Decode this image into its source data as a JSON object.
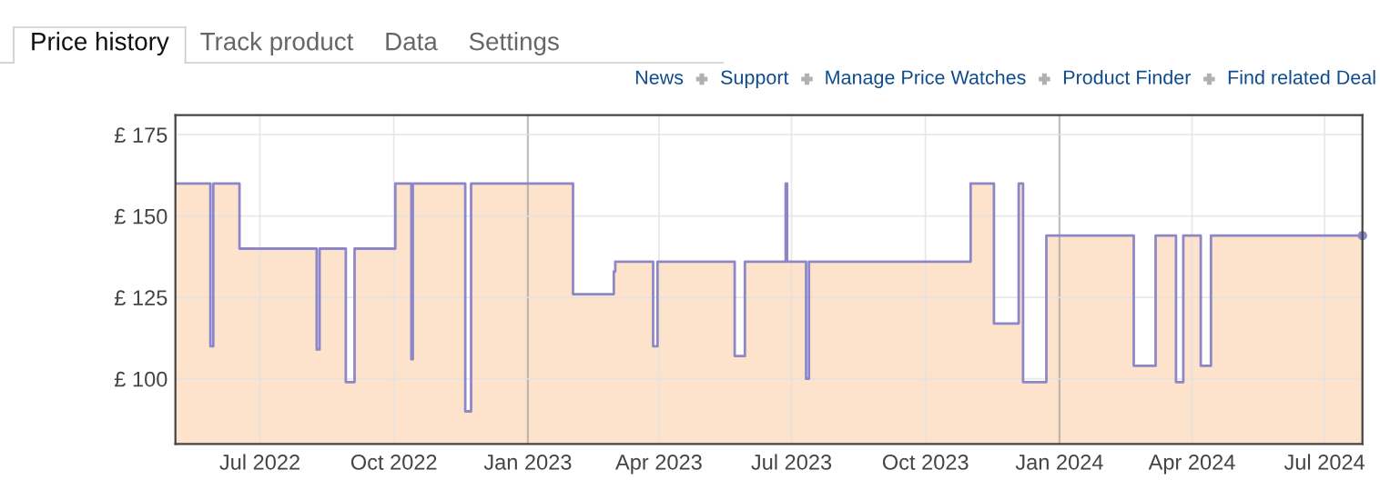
{
  "chart_data": {
    "type": "step",
    "annotations": [
      "Price history",
      "Track product",
      "Data",
      "Settings",
      "News",
      "Support",
      "Manage Price Watches",
      "Product Finder",
      "Find related Deal"
    ],
    "xlim": [
      "2022-05-04",
      "2024-07-27"
    ],
    "ylim": [
      80,
      181
    ],
    "xticks": [
      {
        "value": "2022-07-01",
        "label": "Jul 2022"
      },
      {
        "value": "2022-10-01",
        "label": "Oct 2022"
      },
      {
        "value": "2023-01-01",
        "label": "Jan 2023"
      },
      {
        "value": "2023-04-01",
        "label": "Apr 2023"
      },
      {
        "value": "2023-07-01",
        "label": "Jul 2023"
      },
      {
        "value": "2023-10-01",
        "label": "Oct 2023"
      },
      {
        "value": "2024-01-01",
        "label": "Jan 2024"
      },
      {
        "value": "2024-04-01",
        "label": "Apr 2024"
      },
      {
        "value": "2024-07-01",
        "label": "Jul 2024"
      }
    ],
    "yticks": [
      {
        "value": 100,
        "label": "£ 100"
      },
      {
        "value": 125,
        "label": "£ 125"
      },
      {
        "value": 150,
        "label": "£ 150"
      },
      {
        "value": 175,
        "label": "£ 175"
      }
    ],
    "grid": true,
    "series": [
      {
        "type": "area",
        "color": "#fde3cb",
        "x": [
          "2022-05-04",
          "2022-05-28",
          "2022-05-30",
          "2022-06-17",
          "2022-08-09",
          "2022-08-11",
          "2022-08-29",
          "2022-09-04",
          "2022-10-02",
          "2022-10-13",
          "2022-10-14",
          "2022-11-19",
          "2022-11-23",
          "2023-02-01",
          "2023-03-01",
          "2023-03-02",
          "2023-03-28",
          "2023-03-31",
          "2023-05-23",
          "2023-05-30",
          "2023-06-27",
          "2023-06-28",
          "2023-07-11",
          "2023-07-13",
          "2023-11-01",
          "2023-11-17",
          "2023-12-04",
          "2023-12-07",
          "2023-12-23",
          "2024-02-21",
          "2024-03-07",
          "2024-03-21",
          "2024-03-26",
          "2024-04-07",
          "2024-04-14",
          "2024-07-27"
        ],
        "values": [
          160,
          110,
          160,
          140,
          109,
          140,
          99,
          140,
          160,
          106,
          160,
          90,
          160,
          126,
          133,
          136,
          110,
          136,
          107,
          136,
          160,
          136,
          100,
          136,
          160,
          117,
          160,
          99,
          144,
          104,
          144,
          99,
          144,
          104,
          144,
          144
        ]
      },
      {
        "type": "step",
        "color": "#8d87c9",
        "x": [
          "2022-05-04",
          "2022-05-28",
          "2022-05-30",
          "2022-06-17",
          "2022-08-09",
          "2022-08-11",
          "2022-08-29",
          "2022-09-04",
          "2022-10-02",
          "2022-10-13",
          "2022-10-14",
          "2022-11-19",
          "2022-11-23",
          "2023-02-01",
          "2023-03-01",
          "2023-03-02",
          "2023-03-28",
          "2023-03-31",
          "2023-05-23",
          "2023-05-30",
          "2023-06-27",
          "2023-06-28",
          "2023-07-11",
          "2023-07-13",
          "2023-11-01",
          "2023-11-17",
          "2023-12-04",
          "2023-12-07",
          "2023-12-23",
          "2024-02-21",
          "2024-03-07",
          "2024-03-21",
          "2024-03-26",
          "2024-04-07",
          "2024-04-14",
          "2024-07-27"
        ],
        "values": [
          160,
          110,
          160,
          140,
          109,
          140,
          99,
          140,
          160,
          106,
          160,
          90,
          160,
          126,
          133,
          136,
          110,
          136,
          107,
          136,
          160,
          136,
          100,
          136,
          160,
          117,
          160,
          99,
          144,
          104,
          144,
          99,
          144,
          104,
          144,
          144
        ]
      },
      {
        "type": "scatter",
        "color": "#8d87c9",
        "marker": "circle",
        "x": [
          "2024-07-27"
        ],
        "values": [
          144
        ]
      }
    ]
  }
}
